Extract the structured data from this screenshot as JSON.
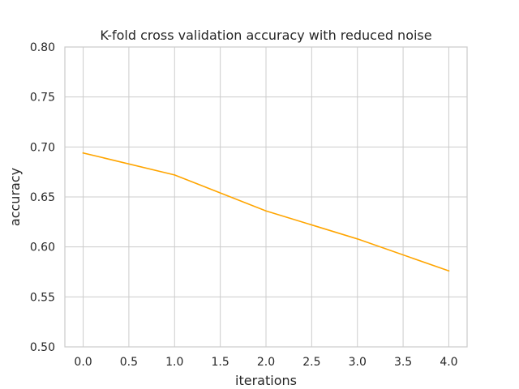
{
  "chart_data": {
    "type": "line",
    "title": "K-fold cross validation accuracy with reduced noise",
    "xlabel": "iterations",
    "ylabel": "accuracy",
    "xlim": [
      -0.2,
      4.2
    ],
    "ylim": [
      0.5,
      0.8
    ],
    "xticks": [
      0.0,
      0.5,
      1.0,
      1.5,
      2.0,
      2.5,
      3.0,
      3.5,
      4.0
    ],
    "xtick_labels": [
      "0.0",
      "0.5",
      "1.0",
      "1.5",
      "2.0",
      "2.5",
      "3.0",
      "3.5",
      "4.0"
    ],
    "yticks": [
      0.5,
      0.55,
      0.6,
      0.65,
      0.7,
      0.75,
      0.8
    ],
    "ytick_labels": [
      "0.50",
      "0.55",
      "0.60",
      "0.65",
      "0.70",
      "0.75",
      "0.80"
    ],
    "grid": true,
    "series": [
      {
        "color": "#ffa500",
        "x": [
          0,
          1,
          2,
          3,
          4
        ],
        "y": [
          0.694,
          0.672,
          0.636,
          0.608,
          0.576
        ]
      }
    ]
  },
  "colors": {
    "grid": "#cccccc",
    "spine": "#cccccc",
    "text": "#262626",
    "background": "#ffffff"
  }
}
